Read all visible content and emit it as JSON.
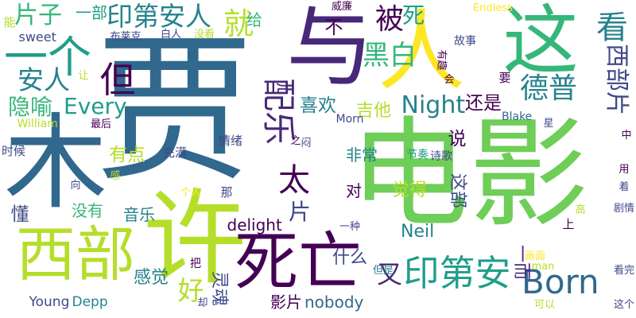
{
  "palette": {
    "dark_purple": "#440154",
    "indigo": "#482878",
    "blue": "#3e4989",
    "steel_blue": "#31688e",
    "teal": "#26828e",
    "green_teal": "#1f9e89",
    "sea_green": "#35b779",
    "green": "#6ece58",
    "lime": "#b5de2b",
    "yellow": "#fde725"
  },
  "words": [
    {
      "text": "电影",
      "color": "#6ece58",
      "vertical": false
    },
    {
      "text": "贾",
      "color": "#31688e",
      "vertical": false
    },
    {
      "text": "木",
      "color": "#31688e",
      "vertical": false
    },
    {
      "text": "许",
      "color": "#b5de2b",
      "vertical": false
    },
    {
      "text": "与",
      "color": "#482878",
      "vertical": false
    },
    {
      "text": "人",
      "color": "#fde725",
      "vertical": false
    },
    {
      "text": "这",
      "color": "#35b779",
      "vertical": false
    },
    {
      "text": "西部",
      "color": "#b5de2b",
      "vertical": false
    },
    {
      "text": "死亡",
      "color": "#440154",
      "vertical": false
    },
    {
      "text": "一个",
      "color": "#1f9e89",
      "vertical": false
    },
    {
      "text": "印第安人",
      "color": "#26828e",
      "vertical": false
    },
    {
      "text": "印第安",
      "color": "#1f9e89",
      "vertical": false
    },
    {
      "text": "Born",
      "color": "#31688e",
      "vertical": false
    },
    {
      "text": "西部片",
      "color": "#3e4989",
      "vertical": true
    },
    {
      "text": "配乐",
      "color": "#482878",
      "vertical": true
    },
    {
      "text": "看",
      "color": "#26828e",
      "vertical": false
    },
    {
      "text": "就",
      "color": "#b5de2b",
      "vertical": false
    },
    {
      "text": "被",
      "color": "#440154",
      "vertical": false
    },
    {
      "text": "死",
      "color": "#1f9e89",
      "vertical": false
    },
    {
      "text": "黑白",
      "color": "#35b779",
      "vertical": false
    },
    {
      "text": "Night",
      "color": "#26828e",
      "vertical": false
    },
    {
      "text": "德普",
      "color": "#26828e",
      "vertical": false
    },
    {
      "text": "但",
      "color": "#440154",
      "vertical": false
    },
    {
      "text": "安人",
      "color": "#26828e",
      "vertical": false
    },
    {
      "text": "片子",
      "color": "#35b779",
      "vertical": false
    },
    {
      "text": "一部",
      "color": "#1f9e89",
      "vertical": false
    },
    {
      "text": "给",
      "color": "#35b779",
      "vertical": false
    },
    {
      "text": "Every",
      "color": "#1f9e89",
      "vertical": false
    },
    {
      "text": "隐喻",
      "color": "#35b779",
      "vertical": false
    },
    {
      "text": "喜欢",
      "color": "#26828e",
      "vertical": false
    },
    {
      "text": "还是",
      "color": "#440154",
      "vertical": false
    },
    {
      "text": "太",
      "color": "#440154",
      "vertical": false
    },
    {
      "text": "片",
      "color": "#3e4989",
      "vertical": false
    },
    {
      "text": "不",
      "color": "#440154",
      "vertical": false
    },
    {
      "text": "有点",
      "color": "#b5de2b",
      "vertical": false
    },
    {
      "text": "说",
      "color": "#440154",
      "vertical": false
    },
    {
      "text": "懂",
      "color": "#3e4989",
      "vertical": false
    },
    {
      "text": "对",
      "color": "#440154",
      "vertical": false
    },
    {
      "text": "觉得",
      "color": "#b5de2b",
      "vertical": false
    },
    {
      "text": "这部",
      "color": "#3e4989",
      "vertical": true
    },
    {
      "text": "吉他",
      "color": "#b5de2b",
      "vertical": false
    },
    {
      "text": "非常",
      "color": "#26828e",
      "vertical": false
    },
    {
      "text": "delight",
      "color": "#440154",
      "vertical": false
    },
    {
      "text": "Neil",
      "color": "#26828e",
      "vertical": false
    },
    {
      "text": "一而",
      "color": "#482878",
      "vertical": true
    },
    {
      "text": "什么",
      "color": "#3e4989",
      "vertical": false
    },
    {
      "text": "又",
      "color": "#482878",
      "vertical": false
    },
    {
      "text": "好",
      "color": "#b5de2b",
      "vertical": false
    },
    {
      "text": "灵魂",
      "color": "#3e4989",
      "vertical": true
    },
    {
      "text": "感觉",
      "color": "#26828e",
      "vertical": false
    },
    {
      "text": "没有",
      "color": "#35b779",
      "vertical": false
    },
    {
      "text": "音乐",
      "color": "#26828e",
      "vertical": false
    },
    {
      "text": "nobody",
      "color": "#31688e",
      "vertical": false
    },
    {
      "text": "Young",
      "color": "#3e4989",
      "vertical": false
    },
    {
      "text": "Depp",
      "color": "#26828e",
      "vertical": false
    },
    {
      "text": "影片",
      "color": "#440154",
      "vertical": false
    },
    {
      "text": "sweet",
      "color": "#3e4989",
      "vertical": false
    },
    {
      "text": "时候",
      "color": "#3e4989",
      "vertical": false
    },
    {
      "text": "充满",
      "color": "#3e4989",
      "vertical": false
    },
    {
      "text": "情绪",
      "color": "#3e4989",
      "vertical": false
    },
    {
      "text": "Morn",
      "color": "#3e4989",
      "vertical": false
    },
    {
      "text": "节奏",
      "color": "#1f9e89",
      "vertical": false
    },
    {
      "text": "诗歌",
      "color": "#3e4989",
      "vertical": false
    },
    {
      "text": "Blake",
      "color": "#31688e",
      "vertical": false
    },
    {
      "text": "Endless",
      "color": "#fde725",
      "vertical": false
    },
    {
      "text": "故事",
      "color": "#3e4989",
      "vertical": false
    },
    {
      "text": "要",
      "color": "#440154",
      "vertical": false
    },
    {
      "text": "上",
      "color": "#440154",
      "vertical": false
    },
    {
      "text": "一种",
      "color": "#3e4989",
      "vertical": false
    },
    {
      "text": "但是",
      "color": "#26828e",
      "vertical": false
    },
    {
      "text": "William",
      "color": "#b5de2b",
      "vertical": false
    },
    {
      "text": "布莱克",
      "color": "#3e4989",
      "vertical": false
    },
    {
      "text": "白人",
      "color": "#3e4989",
      "vertical": false
    },
    {
      "text": "没看",
      "color": "#b5de2b",
      "vertical": false
    },
    {
      "text": "威廉",
      "color": "#440154",
      "vertical": false
    },
    {
      "text": "能",
      "color": "#b5de2b",
      "vertical": false
    },
    {
      "text": "最后",
      "color": "#440154",
      "vertical": false
    },
    {
      "text": "让",
      "color": "#b5de2b",
      "vertical": false
    },
    {
      "text": "感",
      "color": "#b5de2b",
      "vertical": false
    },
    {
      "text": "向",
      "color": "#3e4989",
      "vertical": false
    },
    {
      "text": "个人",
      "color": "#fde725",
      "vertical": false
    },
    {
      "text": "那",
      "color": "#3e4989",
      "vertical": false
    },
    {
      "text": "把",
      "color": "#440154",
      "vertical": false
    },
    {
      "text": "却",
      "color": "#3e4989",
      "vertical": false
    },
    {
      "text": "画面",
      "color": "#fde725",
      "vertical": false
    },
    {
      "text": "man",
      "color": "#b5de2b",
      "vertical": false
    },
    {
      "text": "看完",
      "color": "#3e4989",
      "vertical": false
    },
    {
      "text": "可以",
      "color": "#b5de2b",
      "vertical": false
    },
    {
      "text": "这个",
      "color": "#3e4989",
      "vertical": false
    },
    {
      "text": "剧情",
      "color": "#3e4989",
      "vertical": false
    },
    {
      "text": "高",
      "color": "#b5de2b",
      "vertical": false
    },
    {
      "text": "着",
      "color": "#3e4989",
      "vertical": false
    },
    {
      "text": "用",
      "color": "#440154",
      "vertical": false
    },
    {
      "text": "中",
      "color": "#440154",
      "vertical": false
    },
    {
      "text": "星",
      "color": "#3e4989",
      "vertical": false
    },
    {
      "text": "之",
      "color": "#440154",
      "vertical": false
    },
    {
      "text": "闷",
      "color": "#3e4989",
      "vertical": false
    },
    {
      "text": "会",
      "color": "#440154",
      "vertical": false
    },
    {
      "text": "有趣",
      "color": "#440154",
      "vertical": true
    }
  ]
}
